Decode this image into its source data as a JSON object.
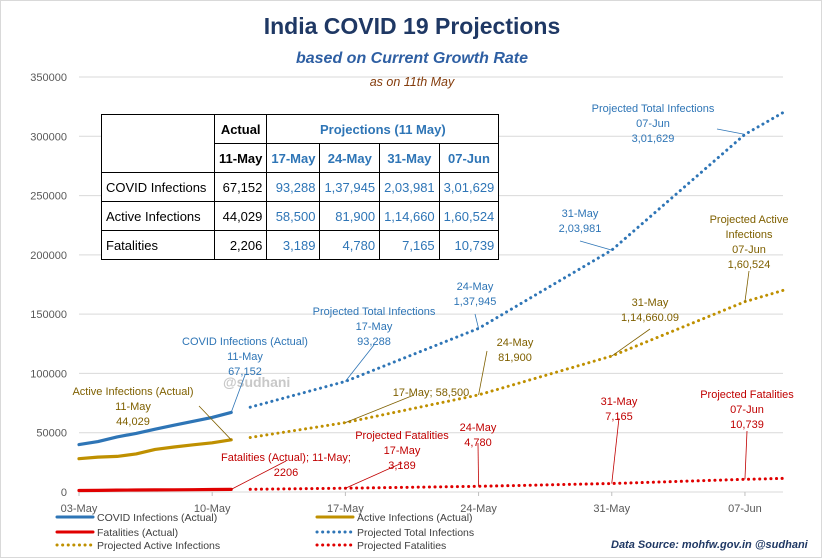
{
  "header": {
    "title": "India COVID 19 Projections",
    "subtitle": "based on Current Growth Rate",
    "as_of": "as  on 11th May"
  },
  "table": {
    "actual_header": "Actual",
    "projection_header": "Projections (11 May)",
    "actual_date": "11-May",
    "projection_dates": [
      "17-May",
      "24-May",
      "31-May",
      "07-Jun"
    ],
    "rows": [
      {
        "label": "COVID Infections",
        "actual": "67,152",
        "projected": [
          "93,288",
          "1,37,945",
          "2,03,981",
          "3,01,629"
        ]
      },
      {
        "label": "Active Infections",
        "actual": "44,029",
        "projected": [
          "58,500",
          "81,900",
          "1,14,660",
          "1,60,524"
        ]
      },
      {
        "label": "Fatalities",
        "actual": "2,206",
        "projected": [
          "3,189",
          "4,780",
          "7,165",
          "10,739"
        ]
      }
    ]
  },
  "watermark": "@sudhani",
  "source": "Data Source:  mohfw.gov.in @sudhani",
  "chart_data": {
    "type": "line",
    "x_ticks": [
      "03-May",
      "10-May",
      "17-May",
      "24-May",
      "31-May",
      "07-Jun"
    ],
    "y_ticks": [
      "0",
      "50000",
      "100000",
      "150000",
      "200000",
      "250000",
      "300000",
      "350000"
    ],
    "ylim": [
      0,
      350000
    ],
    "xlim": [
      "2020-05-03",
      "2020-06-09"
    ],
    "grid": "horizontal",
    "legend_position": "bottom",
    "series": [
      {
        "name": "COVID Infections (Actual)",
        "color": "#2e75b6",
        "style": "solid",
        "points": [
          [
            "2020-05-03",
            39980
          ],
          [
            "2020-05-04",
            42533
          ],
          [
            "2020-05-05",
            46433
          ],
          [
            "2020-05-06",
            49391
          ],
          [
            "2020-05-07",
            52952
          ],
          [
            "2020-05-08",
            56342
          ],
          [
            "2020-05-09",
            59662
          ],
          [
            "2020-05-10",
            62939
          ],
          [
            "2020-05-11",
            67152
          ]
        ]
      },
      {
        "name": "Active Infections  (Actual)",
        "color": "#bf9000",
        "style": "solid",
        "points": [
          [
            "2020-05-03",
            28046
          ],
          [
            "2020-05-04",
            29453
          ],
          [
            "2020-05-05",
            30000
          ],
          [
            "2020-05-06",
            32138
          ],
          [
            "2020-05-07",
            35902
          ],
          [
            "2020-05-08",
            37916
          ],
          [
            "2020-05-09",
            39834
          ],
          [
            "2020-05-10",
            41472
          ],
          [
            "2020-05-11",
            44029
          ]
        ]
      },
      {
        "name": "Fatalities (Actual)",
        "color": "#e00000",
        "style": "solid",
        "points": [
          [
            "2020-05-03",
            1301
          ],
          [
            "2020-05-04",
            1373
          ],
          [
            "2020-05-05",
            1568
          ],
          [
            "2020-05-06",
            1694
          ],
          [
            "2020-05-07",
            1783
          ],
          [
            "2020-05-08",
            1886
          ],
          [
            "2020-05-09",
            1981
          ],
          [
            "2020-05-10",
            2109
          ],
          [
            "2020-05-11",
            2206
          ]
        ]
      },
      {
        "name": "Projected Total Infections",
        "color": "#2e75b6",
        "style": "dotted",
        "points": [
          [
            "2020-05-12",
            71500
          ],
          [
            "2020-05-17",
            93288
          ],
          [
            "2020-05-24",
            137945
          ],
          [
            "2020-05-31",
            203981
          ],
          [
            "2020-06-07",
            301629
          ],
          [
            "2020-06-09",
            320000
          ]
        ]
      },
      {
        "name": "Projected Active Infections",
        "color": "#bf9000",
        "style": "dotted",
        "points": [
          [
            "2020-05-12",
            46000
          ],
          [
            "2020-05-17",
            58500
          ],
          [
            "2020-05-24",
            81900
          ],
          [
            "2020-05-31",
            114660
          ],
          [
            "2020-06-07",
            160524
          ],
          [
            "2020-06-09",
            170000
          ]
        ]
      },
      {
        "name": "Projected Fatalities",
        "color": "#e00000",
        "style": "dotted",
        "points": [
          [
            "2020-05-12",
            2300
          ],
          [
            "2020-05-17",
            3189
          ],
          [
            "2020-05-24",
            4780
          ],
          [
            "2020-05-31",
            7165
          ],
          [
            "2020-06-07",
            10739
          ],
          [
            "2020-06-09",
            11500
          ]
        ]
      }
    ],
    "annotations": [
      {
        "lines": [
          "COVID Infections (Actual)",
          "11-May",
          "67,152"
        ],
        "color": "#2e75b6",
        "at": [
          "2020-05-11",
          67152
        ]
      },
      {
        "lines": [
          "Active Infections (Actual)",
          "11-May",
          "44,029"
        ],
        "color": "#7f6000",
        "at": [
          "2020-05-11",
          44029
        ]
      },
      {
        "lines": [
          "Fatalities (Actual); 11-May;",
          "2206"
        ],
        "color": "#c00000",
        "at": [
          "2020-05-11",
          2206
        ]
      },
      {
        "lines": [
          "Projected Total Infections",
          "17-May",
          "93,288"
        ],
        "color": "#2e75b6",
        "at": [
          "2020-05-17",
          93288
        ]
      },
      {
        "lines": [
          "24-May",
          "1,37,945"
        ],
        "color": "#2e75b6",
        "at": [
          "2020-05-24",
          137945
        ]
      },
      {
        "lines": [
          "31-May",
          "2,03,981"
        ],
        "color": "#2e75b6",
        "at": [
          "2020-05-31",
          203981
        ]
      },
      {
        "lines": [
          "Projected Total Infections",
          "07-Jun",
          "3,01,629"
        ],
        "color": "#2e75b6",
        "at": [
          "2020-06-07",
          301629
        ]
      },
      {
        "lines": [
          "17-May; 58,500"
        ],
        "color": "#7f6000",
        "at": [
          "2020-05-17",
          58500
        ]
      },
      {
        "lines": [
          "24-May",
          "81,900"
        ],
        "color": "#7f6000",
        "at": [
          "2020-05-24",
          81900
        ]
      },
      {
        "lines": [
          "31-May",
          "1,14,660.09"
        ],
        "color": "#7f6000",
        "at": [
          "2020-05-31",
          114660
        ]
      },
      {
        "lines": [
          "Projected Active",
          "Infections",
          "07-Jun",
          "1,60,524"
        ],
        "color": "#7f6000",
        "at": [
          "2020-06-07",
          160524
        ]
      },
      {
        "lines": [
          "Projected Fatalities",
          "17-May",
          "3,189"
        ],
        "color": "#c00000",
        "at": [
          "2020-05-17",
          3189
        ]
      },
      {
        "lines": [
          "24-May",
          "4,780"
        ],
        "color": "#c00000",
        "at": [
          "2020-05-24",
          4780
        ]
      },
      {
        "lines": [
          "31-May",
          "7,165"
        ],
        "color": "#c00000",
        "at": [
          "2020-05-31",
          7165
        ]
      },
      {
        "lines": [
          "Projected Fatalities",
          "07-Jun",
          "10,739"
        ],
        "color": "#c00000",
        "at": [
          "2020-06-07",
          10739
        ]
      }
    ]
  }
}
